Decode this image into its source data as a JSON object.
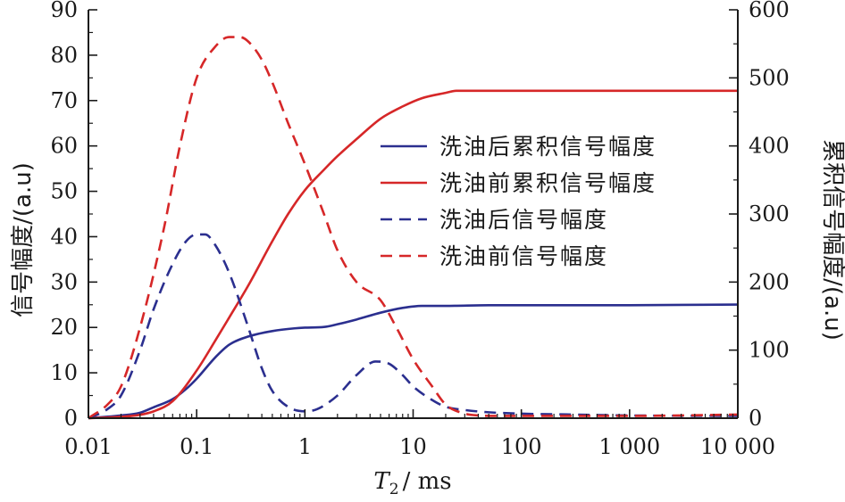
{
  "chart_data": {
    "type": "line",
    "xlabel_main": "T",
    "xlabel_sub": "2",
    "xlabel_unit": "/ ms",
    "ylabel_left": "信号幅度/(a.u)",
    "ylabel_right": "累积信号幅度/(a.u)",
    "x_scale": "log",
    "xlim": [
      0.01,
      10000
    ],
    "ylim_left": [
      0,
      90
    ],
    "ylim_right": [
      0,
      600
    ],
    "x_ticks": [
      0.01,
      0.1,
      1,
      10,
      100,
      1000,
      10000
    ],
    "x_tick_labels": [
      "0.01",
      "0.1",
      "1",
      "10",
      "100",
      "1 000",
      "10 000"
    ],
    "y_left_ticks": [
      0,
      10,
      20,
      30,
      40,
      50,
      60,
      70,
      80,
      90
    ],
    "y_left_tick_labels": [
      "0",
      "10",
      "20",
      "30",
      "40",
      "50",
      "60",
      "70",
      "80",
      "90"
    ],
    "y_right_ticks": [
      0,
      100,
      200,
      300,
      400,
      500,
      600
    ],
    "y_right_tick_labels": [
      "0",
      "100",
      "200",
      "300",
      "400",
      "500",
      "600"
    ],
    "grid": false,
    "legend_position": "right",
    "series": [
      {
        "name": "洗油后累积信号幅度",
        "axis": "right",
        "style": "solid",
        "color": "#2b2f8f",
        "x": [
          0.01,
          0.02,
          0.03,
          0.04,
          0.06,
          0.08,
          0.1,
          0.15,
          0.2,
          0.3,
          0.5,
          0.8,
          1,
          1.5,
          2,
          3,
          5,
          8,
          12,
          20,
          50,
          100,
          1000,
          10000
        ],
        "y": [
          0,
          4,
          8,
          16,
          28,
          43,
          58,
          90,
          108,
          120,
          128,
          132,
          133,
          134,
          138,
          145,
          155,
          162,
          165,
          165,
          166,
          166,
          166,
          167
        ]
      },
      {
        "name": "洗油前累积信号幅度",
        "axis": "right",
        "style": "solid",
        "color": "#d62728",
        "x": [
          0.01,
          0.02,
          0.03,
          0.04,
          0.06,
          0.1,
          0.15,
          0.2,
          0.3,
          0.5,
          0.7,
          1,
          1.5,
          2,
          3,
          5,
          8,
          12,
          20,
          25,
          30,
          50,
          100,
          1000,
          10000
        ],
        "y": [
          0,
          2,
          5,
          10,
          25,
          70,
          115,
          148,
          195,
          260,
          300,
          335,
          365,
          385,
          410,
          440,
          458,
          470,
          478,
          481,
          481,
          481,
          481,
          481,
          481
        ]
      },
      {
        "name": "洗油后信号幅度",
        "axis": "left",
        "style": "dashed",
        "color": "#2b2f8f",
        "x": [
          0.01,
          0.015,
          0.02,
          0.03,
          0.04,
          0.06,
          0.08,
          0.1,
          0.12,
          0.15,
          0.2,
          0.3,
          0.4,
          0.5,
          0.7,
          1,
          1.3,
          2,
          3,
          4.5,
          6,
          8,
          10,
          15,
          20,
          30,
          50,
          100,
          300,
          1000,
          10000
        ],
        "y": [
          0,
          2,
          5,
          15,
          24,
          34,
          39,
          40.5,
          40.5,
          38,
          32,
          20,
          11,
          6,
          2.5,
          1.5,
          2,
          5,
          9.5,
          12.5,
          12,
          9.5,
          7,
          4,
          2.5,
          1.8,
          1.3,
          1,
          0.8,
          0.6,
          0.5
        ]
      },
      {
        "name": "洗油前信号幅度",
        "axis": "left",
        "style": "dashed",
        "color": "#d62728",
        "x": [
          0.01,
          0.015,
          0.02,
          0.03,
          0.05,
          0.07,
          0.1,
          0.15,
          0.2,
          0.25,
          0.3,
          0.4,
          0.5,
          0.7,
          1,
          1.5,
          2,
          3,
          5,
          7,
          10,
          15,
          20,
          30,
          40,
          60,
          100,
          1000,
          10000
        ],
        "y": [
          0,
          3,
          7,
          20,
          42,
          60,
          75,
          82,
          84,
          84,
          83,
          79,
          74,
          65,
          56,
          45,
          37,
          30,
          26,
          20,
          13,
          7,
          3,
          1,
          0.6,
          0.5,
          0.5,
          0.5,
          0.8
        ]
      }
    ]
  }
}
